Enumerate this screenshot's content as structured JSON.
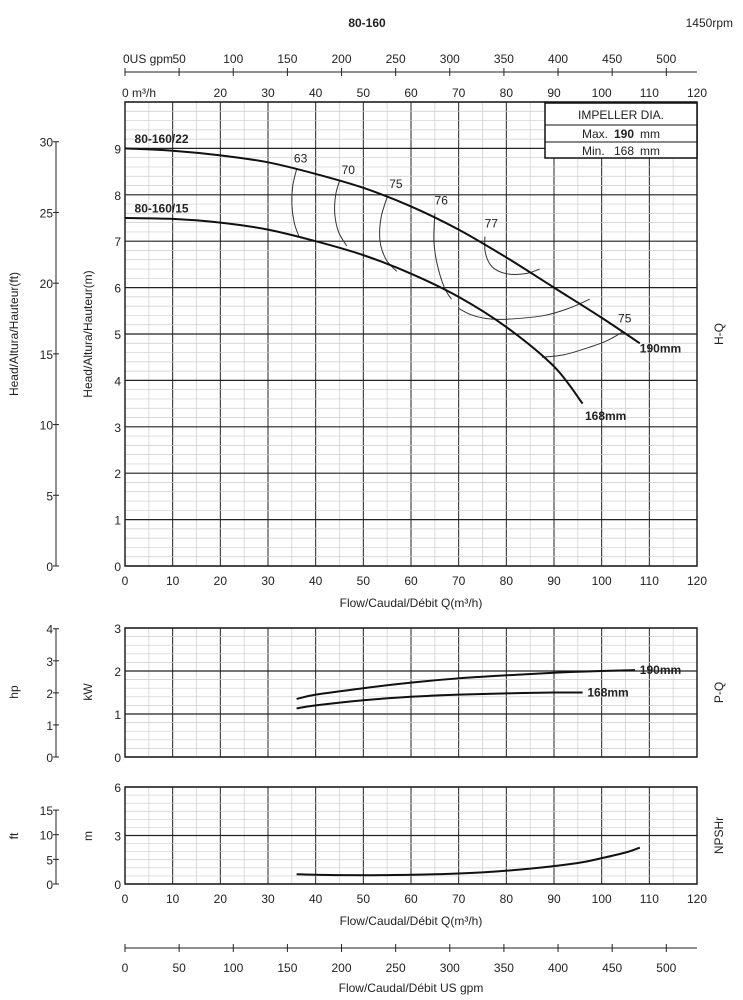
{
  "title": "80-160",
  "speed": "1450rpm",
  "impeller_table": {
    "header": "IMPELLER DIA.",
    "max_label": "Max.",
    "max_value": "190",
    "min_label": "Min.",
    "min_value": "168",
    "unit": "mm"
  },
  "chart_data": [
    {
      "type": "line",
      "name": "H-Q",
      "side_label": "H-Q",
      "xlim": [
        0,
        120
      ],
      "ylim": [
        0,
        10
      ],
      "x_ticks": [
        0,
        10,
        20,
        30,
        40,
        50,
        60,
        70,
        80,
        90,
        100,
        110,
        120
      ],
      "y_ticks": [
        0,
        1,
        2,
        3,
        4,
        5,
        6,
        7,
        8,
        9
      ],
      "ft_ticks": [
        0,
        5,
        10,
        15,
        20,
        25,
        30
      ],
      "xlabel": "Flow/Caudal/Débit Q(m³/h)",
      "ylabel_m": "Head/Altura/Hauteur(m)",
      "ylabel_ft": "Head/Altura/Hauteur(ft)",
      "top_axis_m3h_label": "0 m³/h",
      "top_axis_m3h_ticks": [
        20,
        30,
        40,
        50,
        60,
        70,
        80,
        90,
        100,
        110,
        120
      ],
      "top_axis_gpm_label": "0US gpm",
      "top_axis_gpm_ticks": [
        50,
        100,
        150,
        200,
        250,
        300,
        350,
        400,
        450,
        500
      ],
      "grid": true,
      "series": [
        {
          "name": "190mm",
          "model": "80-160/22",
          "x": [
            0,
            10,
            20,
            30,
            40,
            50,
            60,
            70,
            80,
            90,
            100,
            108
          ],
          "y": [
            9.0,
            8.95,
            8.85,
            8.7,
            8.45,
            8.15,
            7.75,
            7.25,
            6.65,
            6.0,
            5.35,
            4.8
          ]
        },
        {
          "name": "168mm",
          "model": "80-160/15",
          "x": [
            0,
            10,
            20,
            30,
            40,
            50,
            60,
            70,
            80,
            90,
            96
          ],
          "y": [
            7.5,
            7.48,
            7.4,
            7.25,
            7.0,
            6.7,
            6.3,
            5.8,
            5.15,
            4.3,
            3.5
          ]
        }
      ],
      "efficiency_curves": [
        {
          "label": "63",
          "x": [
            36,
            35.2,
            35,
            35.5,
            36.5
          ],
          "y": [
            8.55,
            8.2,
            7.8,
            7.4,
            7.1
          ]
        },
        {
          "label": "70",
          "x": [
            45,
            44.2,
            44,
            44.8,
            46.5
          ],
          "y": [
            8.3,
            8.0,
            7.6,
            7.2,
            6.9
          ]
        },
        {
          "label": "75",
          "x": [
            55,
            53.7,
            53.5,
            54.8,
            57
          ],
          "y": [
            7.95,
            7.5,
            7.0,
            6.6,
            6.35
          ]
        },
        {
          "label": "76",
          "x": [
            65,
            64.8,
            65.5,
            67,
            68.5
          ],
          "y": [
            7.6,
            7.0,
            6.5,
            6.0,
            5.75
          ]
        },
        {
          "label": "77",
          "x": [
            75.5,
            75.6,
            77,
            80,
            84,
            87
          ],
          "y": [
            7.1,
            6.75,
            6.45,
            6.3,
            6.3,
            6.4
          ]
        },
        {
          "label": "",
          "x": [
            70,
            73,
            77,
            82,
            88,
            93,
            97.5
          ],
          "y": [
            5.55,
            5.4,
            5.32,
            5.33,
            5.4,
            5.55,
            5.75
          ]
        },
        {
          "label": "75",
          "x": [
            87.5,
            92,
            97,
            101,
            104.5
          ],
          "y": [
            4.5,
            4.55,
            4.7,
            4.85,
            5.05
          ]
        }
      ]
    },
    {
      "type": "line",
      "name": "P-Q",
      "side_label": "P-Q",
      "xlim": [
        0,
        120
      ],
      "ylim": [
        0,
        3
      ],
      "y_ticks": [
        0,
        1,
        2,
        3
      ],
      "hp_ticks": [
        0,
        1,
        2,
        3,
        4
      ],
      "ylabel_kw": "kW",
      "ylabel_hp": "hp",
      "grid": true,
      "series": [
        {
          "name": "190mm",
          "x": [
            36,
            40,
            50,
            60,
            70,
            80,
            90,
            100,
            107
          ],
          "y": [
            1.35,
            1.45,
            1.6,
            1.73,
            1.83,
            1.9,
            1.96,
            2.0,
            2.02
          ]
        },
        {
          "name": "168mm",
          "x": [
            36,
            40,
            50,
            60,
            70,
            80,
            90,
            96
          ],
          "y": [
            1.13,
            1.2,
            1.32,
            1.4,
            1.45,
            1.48,
            1.5,
            1.5
          ]
        }
      ]
    },
    {
      "type": "line",
      "name": "NPSHr",
      "side_label": "NPSHr",
      "xlim": [
        0,
        120
      ],
      "ylim": [
        0,
        6
      ],
      "x_ticks": [
        0,
        10,
        20,
        30,
        40,
        50,
        60,
        70,
        80,
        90,
        100,
        110,
        120
      ],
      "y_ticks": [
        0,
        3,
        6
      ],
      "ft_ticks": [
        0,
        5,
        10,
        15
      ],
      "ylabel_m": "m",
      "ylabel_ft": "ft",
      "xlabel": "Flow/Caudal/Débit Q(m³/h)",
      "bottom_axis_gpm_ticks": [
        0,
        50,
        100,
        150,
        200,
        250,
        300,
        350,
        400,
        450,
        500
      ],
      "bottom_axis_label": "Flow/Caudal/Débit  US gpm",
      "grid": true,
      "series": [
        {
          "name": "",
          "x": [
            36,
            45,
            55,
            65,
            75,
            85,
            95,
            100,
            105,
            108
          ],
          "y": [
            0.6,
            0.55,
            0.55,
            0.6,
            0.72,
            0.95,
            1.3,
            1.6,
            1.95,
            2.25
          ]
        }
      ]
    }
  ]
}
